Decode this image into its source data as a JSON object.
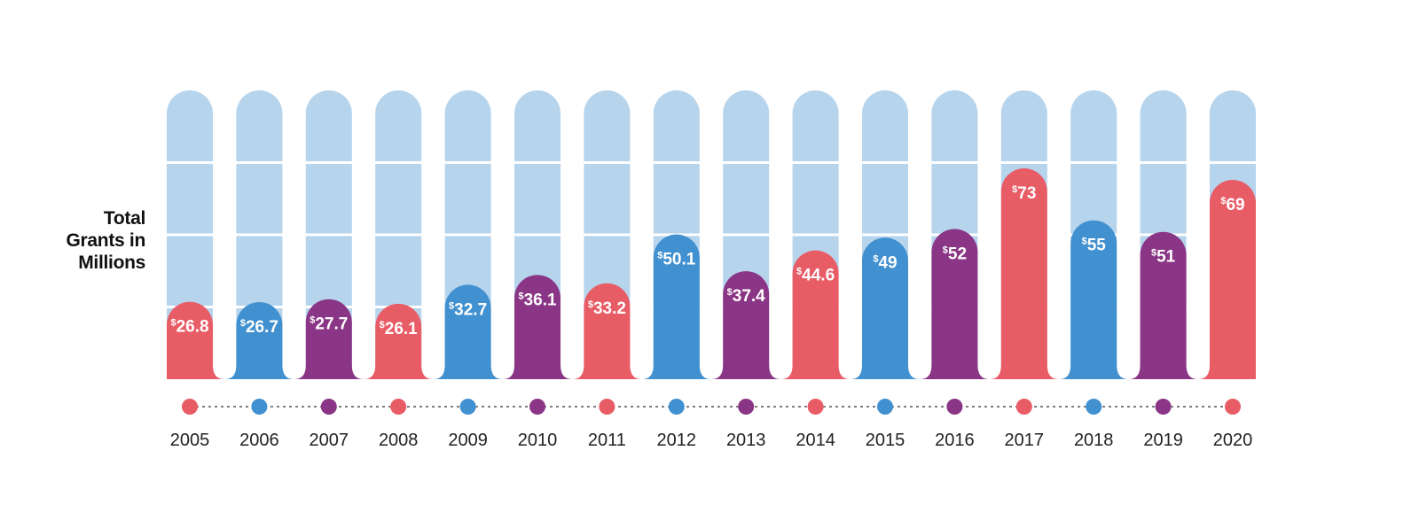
{
  "chart_data": {
    "type": "bar",
    "ylabel": [
      "Total",
      "Grants in",
      "Millions"
    ],
    "categories": [
      "2005",
      "2006",
      "2007",
      "2008",
      "2009",
      "2010",
      "2011",
      "2012",
      "2013",
      "2014",
      "2015",
      "2016",
      "2017",
      "2018",
      "2019",
      "2020"
    ],
    "values": [
      26.8,
      26.7,
      27.7,
      26.1,
      32.7,
      36.1,
      33.2,
      50.1,
      37.4,
      44.6,
      49,
      52,
      73,
      55,
      51,
      69
    ],
    "value_labels": [
      "26.8",
      "26.7",
      "27.7",
      "26.1",
      "32.7",
      "36.1",
      "33.2",
      "50.1",
      "37.4",
      "44.6",
      "49",
      "52",
      "73",
      "55",
      "51",
      "69"
    ],
    "value_prefix": "$",
    "ylim": [
      0,
      100
    ],
    "grid": true,
    "colors": {
      "red": "#e85c66",
      "blue": "#4190d0",
      "purple": "#8a3585",
      "background_column": "#b6d4ec",
      "gridline": "#ffffff",
      "connector": "#555555"
    },
    "bar_colors": [
      "red",
      "blue",
      "purple",
      "red",
      "blue",
      "purple",
      "red",
      "blue",
      "purple",
      "red",
      "blue",
      "purple",
      "red",
      "blue",
      "purple",
      "red"
    ]
  }
}
